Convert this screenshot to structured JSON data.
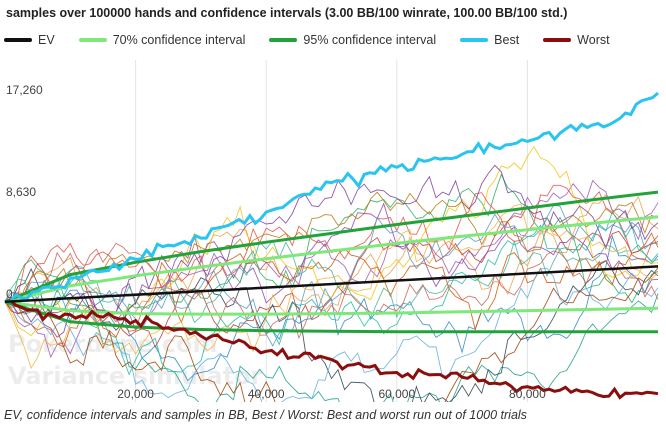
{
  "title": "samples over 100000 hands and confidence intervals (3.00 BB/100 winrate, 100.00 BB/100 std.)",
  "caption": "EV, confidence intervals and samples in BB, Best / Worst: Best and worst run out of 1000 trials",
  "watermark": [
    "Pokerdope.com",
    "Variance simulator"
  ],
  "legend": [
    {
      "label": "EV",
      "color": "#111111"
    },
    {
      "label": "70% confidence interval",
      "color": "#7ee87a"
    },
    {
      "label": "95% confidence interval",
      "color": "#22a33a"
    },
    {
      "label": "Best",
      "color": "#29c4ef"
    },
    {
      "label": "Worst",
      "color": "#8b0e0e"
    }
  ],
  "chart_data": {
    "type": "line",
    "title": "samples over 100000 hands and confidence intervals (3.00 BB/100 winrate, 100.00 BB/100 std.)",
    "xlabel": "",
    "ylabel": "",
    "x_ticks": [
      20000,
      40000,
      60000,
      80000
    ],
    "x_tick_labels": [
      "20,000",
      "40,000",
      "60,000",
      "80,000"
    ],
    "y_ticks": [
      0,
      8630,
      17260
    ],
    "y_tick_labels": [
      "0",
      "8,630",
      "17,260"
    ],
    "xlim": [
      0,
      100000
    ],
    "ylim": [
      -8500,
      20500
    ],
    "grid": "vertical",
    "legend_position": "top",
    "ev_rate_per_hand": 0.03,
    "std_per_100_hands": 100,
    "series": [
      {
        "name": "EV",
        "role": "ev",
        "color": "#111111",
        "x": [
          0,
          100000
        ],
        "y": [
          0,
          3000
        ]
      },
      {
        "name": "70% confidence interval",
        "role": "ci70",
        "color": "#7ee87a",
        "x": [
          0,
          10000,
          20000,
          30000,
          40000,
          50000,
          60000,
          70000,
          80000,
          90000,
          100000
        ],
        "upper": [
          0,
          1350,
          2200,
          2950,
          3650,
          4300,
          4950,
          5550,
          6100,
          6650,
          7200
        ],
        "lower": [
          0,
          -750,
          -1000,
          -1050,
          -1050,
          -1000,
          -950,
          -850,
          -750,
          -650,
          -550
        ]
      },
      {
        "name": "95% confidence interval",
        "role": "ci95",
        "color": "#22a33a",
        "x": [
          0,
          10000,
          20000,
          30000,
          40000,
          50000,
          60000,
          70000,
          80000,
          90000,
          100000
        ],
        "upper": [
          0,
          2300,
          3350,
          4250,
          5050,
          5800,
          6550,
          7250,
          7950,
          8650,
          9300
        ],
        "lower": [
          0,
          -1700,
          -2150,
          -2350,
          -2450,
          -2500,
          -2550,
          -2550,
          -2550,
          -2550,
          -2550
        ]
      },
      {
        "name": "Best",
        "role": "best",
        "color": "#29c4ef",
        "x": [
          0,
          5000,
          10000,
          15000,
          20000,
          25000,
          30000,
          35000,
          40000,
          45000,
          50000,
          55000,
          60000,
          65000,
          70000,
          75000,
          80000,
          85000,
          90000,
          95000,
          100000
        ],
        "y": [
          0,
          900,
          2000,
          2600,
          3600,
          4800,
          5400,
          6700,
          7600,
          9000,
          10100,
          10800,
          11400,
          12000,
          12500,
          13100,
          13600,
          14300,
          15000,
          16000,
          17700
        ]
      },
      {
        "name": "Worst",
        "role": "worst",
        "color": "#8b0e0e",
        "x": [
          0,
          5000,
          10000,
          15000,
          20000,
          25000,
          30000,
          35000,
          40000,
          45000,
          50000,
          55000,
          60000,
          65000,
          70000,
          75000,
          80000,
          85000,
          90000,
          95000,
          100000
        ],
        "y": [
          0,
          -700,
          -1100,
          -1300,
          -1600,
          -2200,
          -2900,
          -3500,
          -4200,
          -4700,
          -4900,
          -5500,
          -6000,
          -6200,
          -6400,
          -6900,
          -7200,
          -7500,
          -7700,
          -7750,
          -7800
        ]
      }
    ],
    "samples": [
      {
        "color": "#e8a04a",
        "end": 6200
      },
      {
        "color": "#9b59b6",
        "end": 8400
      },
      {
        "color": "#c0392b",
        "end": 5100
      },
      {
        "color": "#2e86c1",
        "end": 3900
      },
      {
        "color": "#27ae60",
        "end": 2600
      },
      {
        "color": "#d35400",
        "end": 4600
      },
      {
        "color": "#8e44ad",
        "end": 1900
      },
      {
        "color": "#16a085",
        "end": 700
      },
      {
        "color": "#f1c40f",
        "end": 3300
      },
      {
        "color": "#e74c3c",
        "end": 5600
      },
      {
        "color": "#2c3e50",
        "end": 2200
      },
      {
        "color": "#1abc9c",
        "end": 4100
      },
      {
        "color": "#b9770e",
        "end": 7100
      },
      {
        "color": "#5dade2",
        "end": 1200
      },
      {
        "color": "#a04000",
        "end": 2900
      },
      {
        "color": "#7d3c98",
        "end": 6700
      },
      {
        "color": "#45b39d",
        "end": 3600
      },
      {
        "color": "#cd6155",
        "end": 200
      },
      {
        "color": "#5499c7",
        "end": 4900
      },
      {
        "color": "#f5b041",
        "end": 2500
      }
    ]
  }
}
